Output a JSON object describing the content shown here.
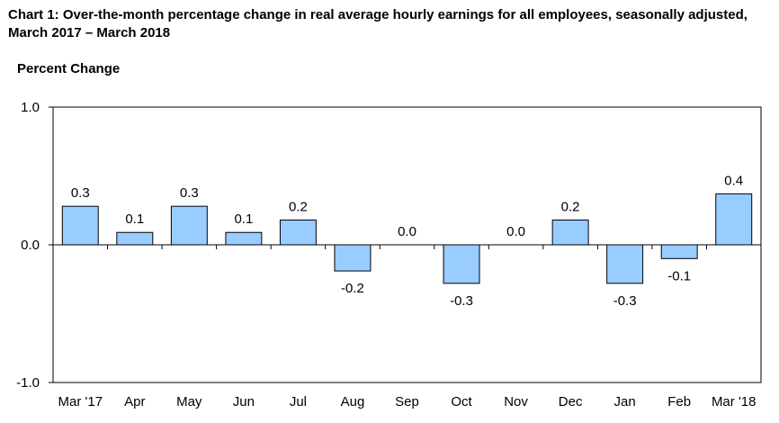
{
  "chart_data": {
    "type": "bar",
    "title": "Chart 1: Over-the-month percentage change in real average hourly earnings for all employees, seasonally adjusted, March 2017 – March 2018",
    "ylabel": "Percent Change",
    "xlabel": "",
    "categories": [
      "Mar '17",
      "Apr",
      "May",
      "Jun",
      "Jul",
      "Aug",
      "Sep",
      "Oct",
      "Nov",
      "Dec",
      "Jan",
      "Feb",
      "Mar '18"
    ],
    "values": [
      0.28,
      0.09,
      0.28,
      0.09,
      0.18,
      -0.19,
      0.0,
      -0.28,
      0.0,
      0.18,
      -0.28,
      -0.1,
      0.37
    ],
    "data_labels": [
      "0.3",
      "0.1",
      "0.3",
      "0.1",
      "0.2",
      "-0.2",
      "0.0",
      "-0.3",
      "0.0",
      "0.2",
      "-0.3",
      "-0.1",
      "0.4"
    ],
    "ylim": [
      -1.0,
      1.0
    ],
    "yticks": [
      {
        "value": 1.0,
        "label": "1.0"
      },
      {
        "value": 0.0,
        "label": "0.0"
      },
      {
        "value": -1.0,
        "label": "-1.0"
      }
    ],
    "grid": false,
    "legend": "none",
    "bar_color": "#99ccff",
    "bar_edge_color": "#000000"
  }
}
